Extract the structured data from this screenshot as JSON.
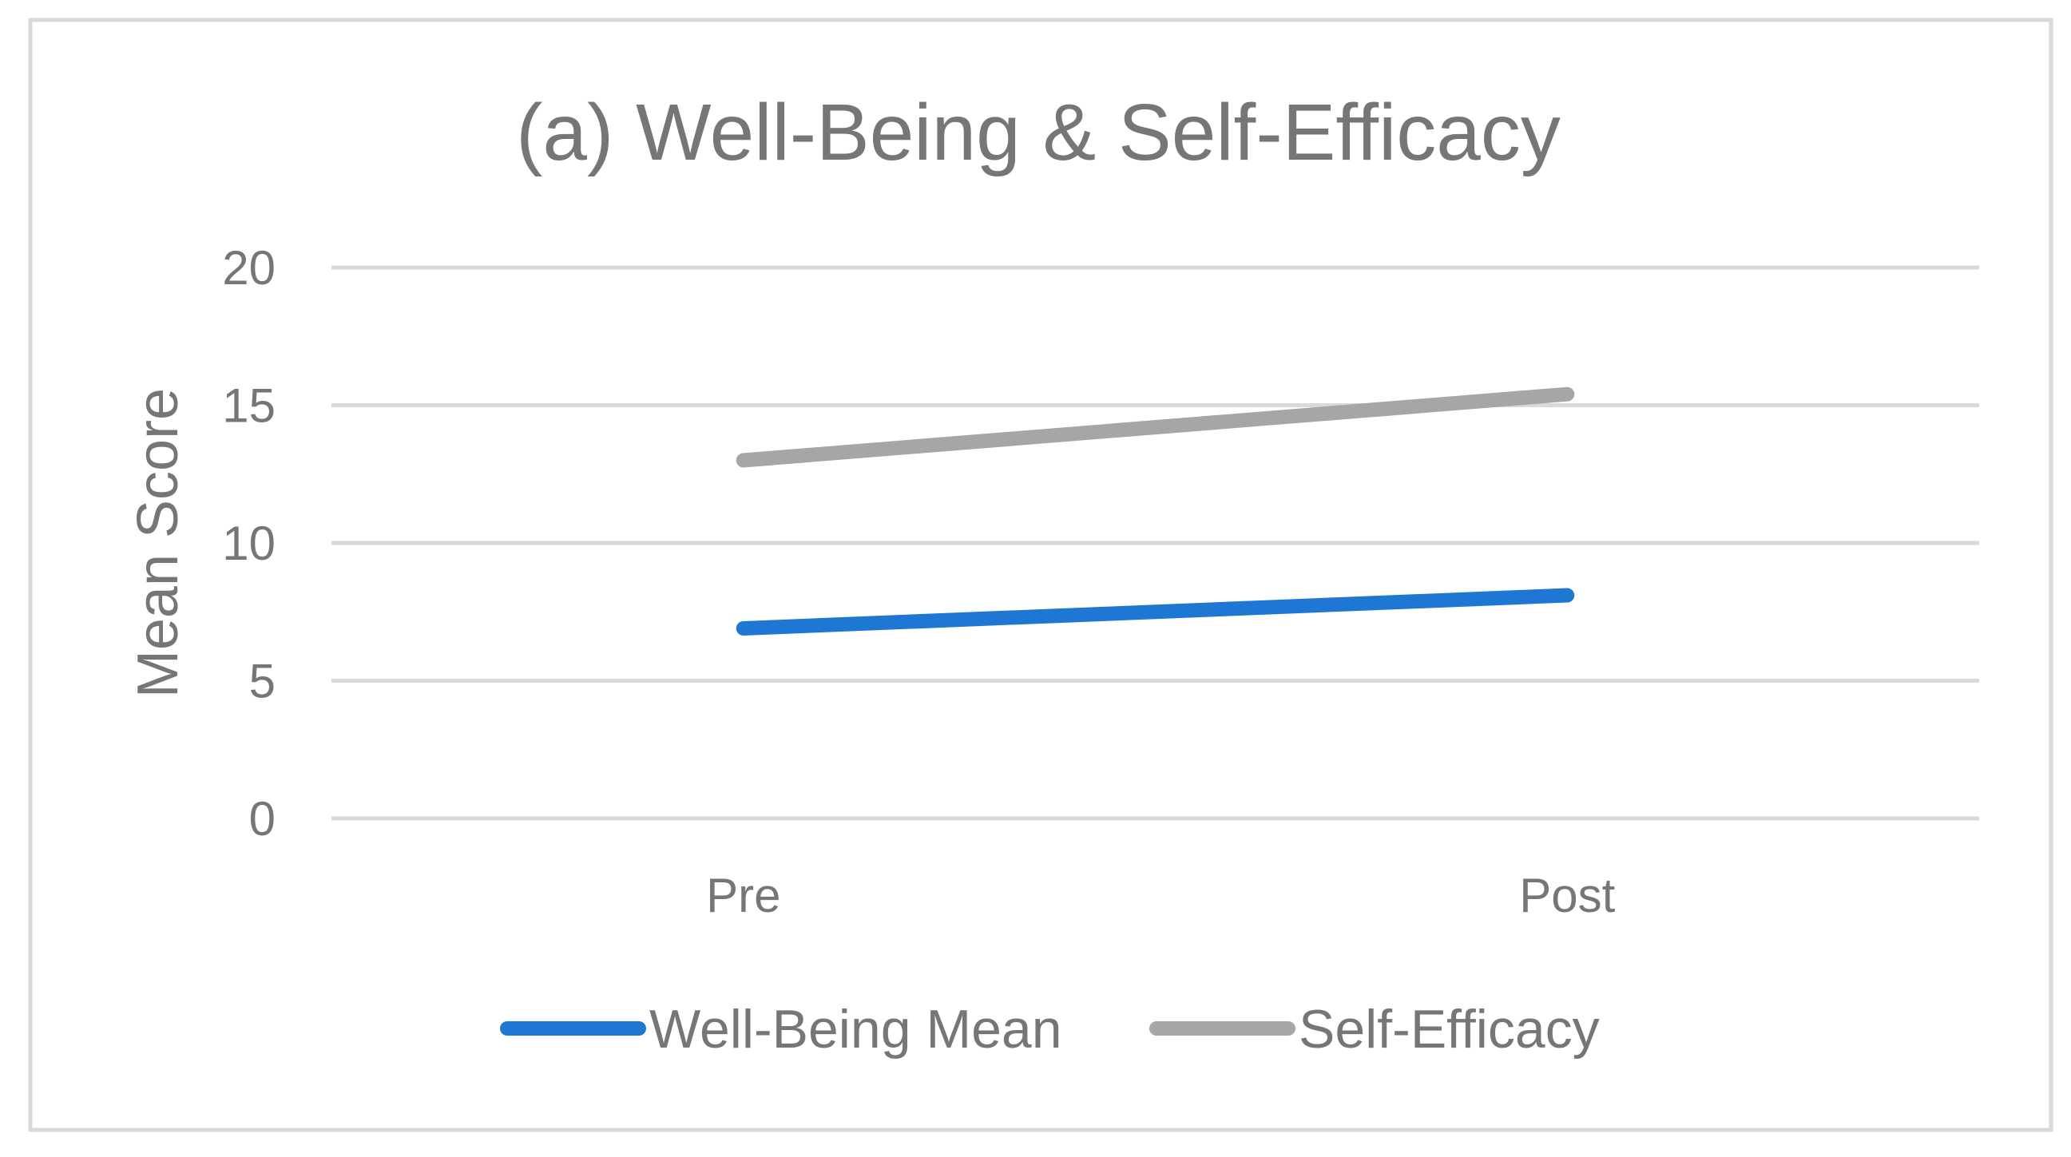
{
  "chart_data": {
    "type": "line",
    "title": "(a) Well-Being & Self-Efficacy",
    "xlabel": "",
    "ylabel": "Mean Score",
    "categories": [
      "Pre",
      "Post"
    ],
    "ylim": [
      0,
      20
    ],
    "yticks": [
      "0",
      "5",
      "10",
      "15",
      "20"
    ],
    "grid": true,
    "legend_position": "bottom",
    "series": [
      {
        "name": "Well-Being Mean",
        "values": [
          6.9,
          8.1
        ],
        "color": "#1f77d4"
      },
      {
        "name": "Self-Efficacy",
        "values": [
          13.0,
          15.4
        ],
        "color": "#a6a6a6"
      }
    ]
  },
  "colors": {
    "frame": "#d9d9d9",
    "grid": "#d9d9d9",
    "text": "#767676"
  }
}
